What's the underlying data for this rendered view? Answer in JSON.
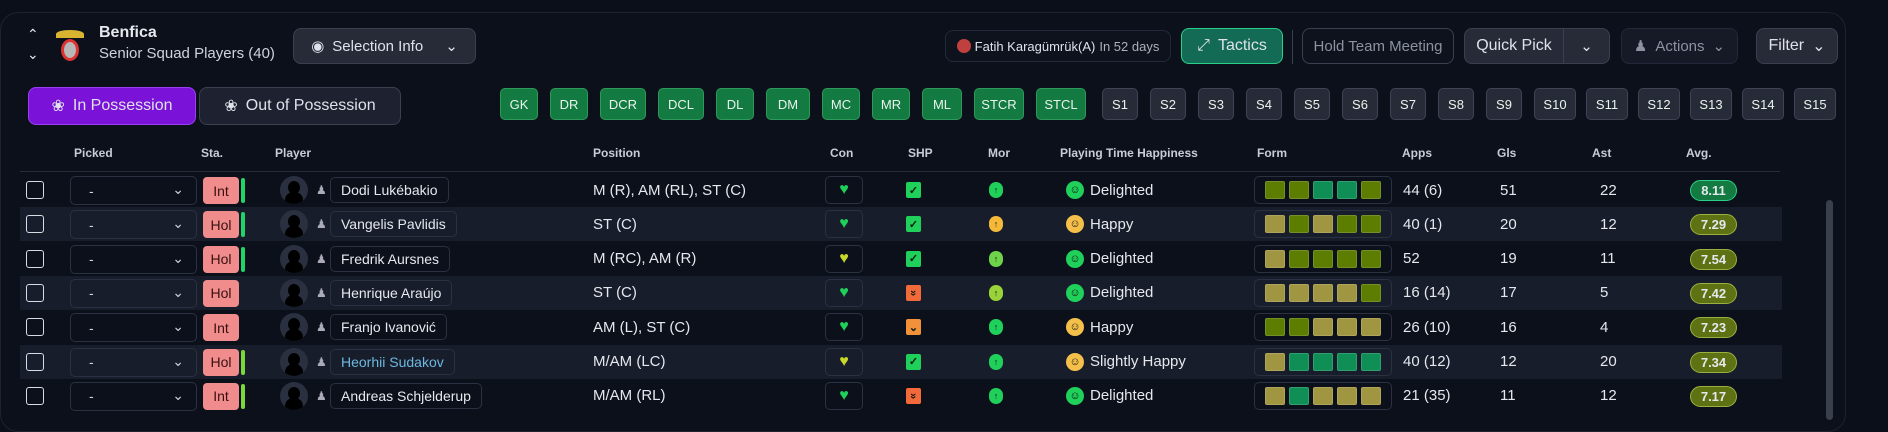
{
  "header": {
    "club": "Benfica",
    "subtitle": "Senior Squad Players (40)",
    "selection_info": "Selection Info",
    "next_fixture": "Fatih Karagümrük(A)",
    "next_fixture_when": "In 52 days",
    "tactics": "Tactics",
    "team_meeting": "Hold Team Meeting",
    "quick_pick": "Quick Pick",
    "actions": "Actions",
    "filter": "Filter"
  },
  "tabs": [
    {
      "label": "In Possession",
      "active": true
    },
    {
      "label": "Out of Possession",
      "active": false
    }
  ],
  "positions": [
    "GK",
    "DR",
    "DCR",
    "DCL",
    "DL",
    "DM",
    "MC",
    "MR",
    "ML",
    "STCR",
    "STCL"
  ],
  "subs": [
    "S1",
    "S2",
    "S3",
    "S4",
    "S5",
    "S6",
    "S7",
    "S8",
    "S9",
    "S10",
    "S11",
    "S12",
    "S13",
    "S14",
    "S15"
  ],
  "columns": [
    "Picked",
    "Sta.",
    "Player",
    "Position",
    "Con",
    "SHP",
    "Mor",
    "Playing Time Happiness",
    "Form",
    "Apps",
    "Gls",
    "Ast",
    "Avg."
  ],
  "colors": {
    "accent": "#7a12d8",
    "form_excellent": "#0f8f55",
    "form_good": "#5c7d00",
    "form_average": "#a09540",
    "rating_excellent": "#137a41",
    "rating_good": "#5e7214"
  },
  "players": [
    {
      "picked": "-",
      "status": "Int",
      "status_bar": "#22d36a",
      "name": "Dodi Lukébakio",
      "position": "M (R), AM (RL), ST (C)",
      "con": "#1fd05a",
      "shp": "check",
      "shp_color": "#1fd05a",
      "mor": "#1fd05a",
      "happiness": "Delighted",
      "face": "#1fd05a",
      "form": [
        "good",
        "good",
        "excellent",
        "excellent",
        "good"
      ],
      "apps": "44 (6)",
      "gls": "51",
      "ast": "22",
      "avg": "8.11",
      "avg_color": "#137a41"
    },
    {
      "picked": "-",
      "status": "Hol",
      "status_bar": "#22d36a",
      "name": "Vangelis Pavlidis",
      "position": "ST (C)",
      "con": "#1fd05a",
      "shp": "check",
      "shp_color": "#1fd05a",
      "mor": "#f5b93a",
      "happiness": "Happy",
      "face": "#f5c04a",
      "form": [
        "average",
        "good",
        "average",
        "good",
        "good"
      ],
      "apps": "40 (1)",
      "gls": "20",
      "ast": "12",
      "avg": "7.29",
      "avg_color": "#5e7214"
    },
    {
      "picked": "-",
      "status": "Hol",
      "status_bar": "#22d36a",
      "name": "Fredrik Aursnes",
      "position": "M (RC), AM (R)",
      "con": "#c6d82a",
      "shp": "check",
      "shp_color": "#1fd05a",
      "mor": "#6ed34a",
      "happiness": "Delighted",
      "face": "#1fd05a",
      "form": [
        "average",
        "good",
        "good",
        "good",
        "good"
      ],
      "apps": "52",
      "gls": "19",
      "ast": "11",
      "avg": "7.54",
      "avg_color": "#5e7214"
    },
    {
      "picked": "-",
      "status": "Hol",
      "status_bar": "",
      "name": "Henrique Araújo",
      "position": "ST (C)",
      "con": "#1fd05a",
      "shp": "double-down",
      "shp_color": "#f26a3a",
      "mor": "#9ad23a",
      "happiness": "Delighted",
      "face": "#1fd05a",
      "form": [
        "average",
        "average",
        "average",
        "average",
        "good"
      ],
      "apps": "16 (14)",
      "gls": "17",
      "ast": "5",
      "avg": "7.42",
      "avg_color": "#5e7214"
    },
    {
      "picked": "-",
      "status": "Int",
      "status_bar": "",
      "name": "Franjo Ivanović",
      "position": "AM (L), ST (C)",
      "con": "#1fd05a",
      "shp": "down",
      "shp_color": "#f2913a",
      "mor": "#1fd05a",
      "happiness": "Happy",
      "face": "#f5c04a",
      "form": [
        "good",
        "good",
        "average",
        "average",
        "average"
      ],
      "apps": "26 (10)",
      "gls": "16",
      "ast": "4",
      "avg": "7.23",
      "avg_color": "#5e7214"
    },
    {
      "picked": "-",
      "status": "Hol",
      "status_bar": "#7ad83a",
      "name": "Heorhii Sudakov",
      "name_color": "#6cb8e0",
      "position": "M/AM (LC)",
      "con": "#c6d82a",
      "shp": "check",
      "shp_color": "#1fd05a",
      "mor": "#1fd05a",
      "happiness": "Slightly Happy",
      "face": "#f5c04a",
      "form": [
        "average",
        "excellent",
        "excellent",
        "excellent",
        "excellent"
      ],
      "apps": "40 (12)",
      "gls": "12",
      "ast": "20",
      "avg": "7.34",
      "avg_color": "#5e7214"
    },
    {
      "picked": "-",
      "status": "Int",
      "status_bar": "#7ad83a",
      "name": "Andreas Schjelderup",
      "position": "M/AM (RL)",
      "con": "#1fd05a",
      "shp": "double-down",
      "shp_color": "#f26a3a",
      "mor": "#1fd05a",
      "happiness": "Delighted",
      "face": "#1fd05a",
      "form": [
        "average",
        "excellent",
        "average",
        "average",
        "average"
      ],
      "apps": "21 (35)",
      "gls": "11",
      "ast": "12",
      "avg": "7.17",
      "avg_color": "#5e7214"
    }
  ]
}
